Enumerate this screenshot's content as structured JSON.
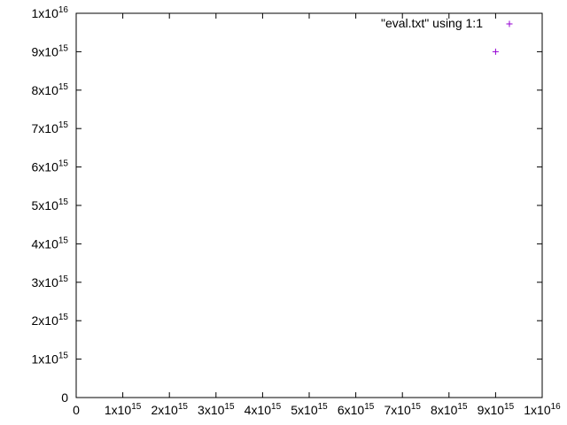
{
  "chart_data": {
    "type": "scatter",
    "title": "",
    "xlabel": "",
    "ylabel": "",
    "xlim": [
      0,
      1e+16
    ],
    "ylim": [
      0,
      1e+16
    ],
    "grid": false,
    "legend_position": "top-right",
    "x_ticks": [
      {
        "value": 0,
        "base": "0",
        "exp": ""
      },
      {
        "value": 1000000000000000.0,
        "base": "1x10",
        "exp": "15"
      },
      {
        "value": 2000000000000000.0,
        "base": "2x10",
        "exp": "15"
      },
      {
        "value": 3000000000000000.0,
        "base": "3x10",
        "exp": "15"
      },
      {
        "value": 4000000000000000.0,
        "base": "4x10",
        "exp": "15"
      },
      {
        "value": 5000000000000000.0,
        "base": "5x10",
        "exp": "15"
      },
      {
        "value": 6000000000000000.0,
        "base": "6x10",
        "exp": "15"
      },
      {
        "value": 7000000000000000.0,
        "base": "7x10",
        "exp": "15"
      },
      {
        "value": 8000000000000000.0,
        "base": "8x10",
        "exp": "15"
      },
      {
        "value": 9000000000000000.0,
        "base": "9x10",
        "exp": "15"
      },
      {
        "value": 1e+16,
        "base": "1x10",
        "exp": "16"
      }
    ],
    "y_ticks": [
      {
        "value": 0,
        "base": "0",
        "exp": ""
      },
      {
        "value": 1000000000000000.0,
        "base": "1x10",
        "exp": "15"
      },
      {
        "value": 2000000000000000.0,
        "base": "2x10",
        "exp": "15"
      },
      {
        "value": 3000000000000000.0,
        "base": "3x10",
        "exp": "15"
      },
      {
        "value": 4000000000000000.0,
        "base": "4x10",
        "exp": "15"
      },
      {
        "value": 5000000000000000.0,
        "base": "5x10",
        "exp": "15"
      },
      {
        "value": 6000000000000000.0,
        "base": "6x10",
        "exp": "15"
      },
      {
        "value": 7000000000000000.0,
        "base": "7x10",
        "exp": "15"
      },
      {
        "value": 8000000000000000.0,
        "base": "8x10",
        "exp": "15"
      },
      {
        "value": 9000000000000000.0,
        "base": "9x10",
        "exp": "15"
      },
      {
        "value": 1e+16,
        "base": "1x10",
        "exp": "16"
      }
    ],
    "series": [
      {
        "name": "\"eval.txt\" using 1:1",
        "color": "#9400d3",
        "marker": "plus",
        "points": [
          {
            "x": 9000000000000000.0,
            "y": 9000000000000000.0
          }
        ]
      }
    ]
  }
}
